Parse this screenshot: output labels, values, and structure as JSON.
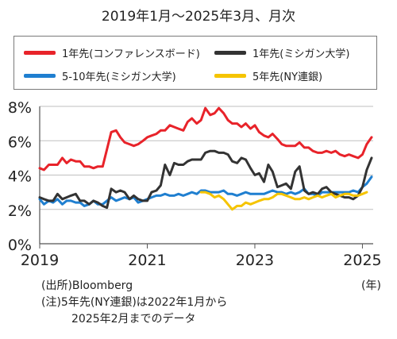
{
  "title": "2019年1月～2025年3月、月次",
  "legend": [
    {
      "label": "1年先(コンファレンスボード)",
      "color": "#e8232a"
    },
    {
      "label": "1年先(ミシガン大学)",
      "color": "#333333"
    },
    {
      "label": "5-10年先(ミシガン大学)",
      "color": "#1f7fd0"
    },
    {
      "label": "5年先(NY連銀)",
      "color": "#f5c400"
    }
  ],
  "notes": {
    "source": "(出所)Bloomberg",
    "note1": "(注)5年先(NY連銀)は2022年1月から",
    "note2": "2025年2月までのデータ"
  },
  "chart_data": {
    "type": "line",
    "x_unit": "年",
    "ylim": [
      0,
      8
    ],
    "y_ticks": [
      "0%",
      "2%",
      "4%",
      "6%",
      "8%"
    ],
    "x_ticks": [
      "2019",
      "2021",
      "2023",
      "2025"
    ],
    "x_tick_values": [
      2019,
      2021,
      2023,
      2025
    ],
    "xlim": [
      2019.0,
      2025.2
    ],
    "grid": true,
    "series": [
      {
        "name": "1年先(コンファレンスボード)",
        "color": "#e8232a",
        "x": [
          2019.0,
          2019.08,
          2019.17,
          2019.25,
          2019.33,
          2019.42,
          2019.5,
          2019.58,
          2019.67,
          2019.75,
          2019.83,
          2019.92,
          2020.0,
          2020.08,
          2020.17,
          2020.25,
          2020.33,
          2020.42,
          2020.5,
          2020.58,
          2020.67,
          2020.75,
          2020.83,
          2020.92,
          2021.0,
          2021.08,
          2021.17,
          2021.25,
          2021.33,
          2021.42,
          2021.5,
          2021.58,
          2021.67,
          2021.75,
          2021.83,
          2021.92,
          2022.0,
          2022.08,
          2022.17,
          2022.25,
          2022.33,
          2022.42,
          2022.5,
          2022.58,
          2022.67,
          2022.75,
          2022.83,
          2022.92,
          2023.0,
          2023.08,
          2023.17,
          2023.25,
          2023.33,
          2023.42,
          2023.5,
          2023.58,
          2023.67,
          2023.75,
          2023.83,
          2023.92,
          2024.0,
          2024.08,
          2024.17,
          2024.25,
          2024.33,
          2024.42,
          2024.5,
          2024.58,
          2024.67,
          2024.75,
          2024.83,
          2024.92,
          2025.0,
          2025.08,
          2025.17
        ],
        "values": [
          4.4,
          4.3,
          4.6,
          4.6,
          4.6,
          5.0,
          4.7,
          4.9,
          4.8,
          4.8,
          4.5,
          4.5,
          4.4,
          4.5,
          4.5,
          5.5,
          6.5,
          6.6,
          6.2,
          5.9,
          5.8,
          5.7,
          5.8,
          6.0,
          6.2,
          6.3,
          6.4,
          6.6,
          6.6,
          6.9,
          6.8,
          6.7,
          6.6,
          7.1,
          7.3,
          7.0,
          7.2,
          7.9,
          7.5,
          7.6,
          7.9,
          7.6,
          7.2,
          7.0,
          7.0,
          6.8,
          7.0,
          6.7,
          6.9,
          6.5,
          6.3,
          6.2,
          6.4,
          6.1,
          5.8,
          5.7,
          5.7,
          5.7,
          5.9,
          5.6,
          5.6,
          5.4,
          5.3,
          5.3,
          5.4,
          5.3,
          5.4,
          5.2,
          5.1,
          5.2,
          5.1,
          5.0,
          5.2,
          5.8,
          6.2
        ]
      },
      {
        "name": "1年先(ミシガン大学)",
        "color": "#333333",
        "x": [
          2019.0,
          2019.08,
          2019.17,
          2019.25,
          2019.33,
          2019.42,
          2019.5,
          2019.58,
          2019.67,
          2019.75,
          2019.83,
          2019.92,
          2020.0,
          2020.08,
          2020.17,
          2020.25,
          2020.33,
          2020.42,
          2020.5,
          2020.58,
          2020.67,
          2020.75,
          2020.83,
          2020.92,
          2021.0,
          2021.08,
          2021.17,
          2021.25,
          2021.33,
          2021.42,
          2021.5,
          2021.58,
          2021.67,
          2021.75,
          2021.83,
          2021.92,
          2022.0,
          2022.08,
          2022.17,
          2022.25,
          2022.33,
          2022.42,
          2022.5,
          2022.58,
          2022.67,
          2022.75,
          2022.83,
          2022.92,
          2023.0,
          2023.08,
          2023.17,
          2023.25,
          2023.33,
          2023.42,
          2023.5,
          2023.58,
          2023.67,
          2023.75,
          2023.83,
          2023.92,
          2024.0,
          2024.08,
          2024.17,
          2024.25,
          2024.33,
          2024.42,
          2024.5,
          2024.58,
          2024.67,
          2024.75,
          2024.83,
          2024.92,
          2025.0,
          2025.08,
          2025.17
        ],
        "values": [
          2.7,
          2.6,
          2.5,
          2.5,
          2.9,
          2.6,
          2.7,
          2.8,
          2.9,
          2.5,
          2.5,
          2.3,
          2.5,
          2.4,
          2.2,
          2.1,
          3.2,
          3.0,
          3.1,
          3.0,
          2.6,
          2.8,
          2.6,
          2.5,
          2.5,
          3.0,
          3.1,
          3.4,
          4.6,
          4.0,
          4.7,
          4.6,
          4.6,
          4.8,
          4.9,
          4.9,
          4.9,
          5.3,
          5.4,
          5.4,
          5.3,
          5.3,
          5.2,
          4.8,
          4.7,
          5.0,
          4.9,
          4.4,
          4.0,
          4.1,
          3.6,
          4.6,
          4.2,
          3.3,
          3.4,
          3.5,
          3.2,
          4.2,
          4.5,
          3.1,
          2.9,
          3.0,
          2.9,
          3.2,
          3.3,
          3.0,
          2.9,
          2.8,
          2.7,
          2.7,
          2.6,
          2.8,
          3.3,
          4.3,
          5.0
        ]
      },
      {
        "name": "5-10年先(ミシガン大学)",
        "color": "#1f7fd0",
        "x": [
          2019.0,
          2019.08,
          2019.17,
          2019.25,
          2019.33,
          2019.42,
          2019.5,
          2019.58,
          2019.67,
          2019.75,
          2019.83,
          2019.92,
          2020.0,
          2020.08,
          2020.17,
          2020.25,
          2020.33,
          2020.42,
          2020.5,
          2020.58,
          2020.67,
          2020.75,
          2020.83,
          2020.92,
          2021.0,
          2021.08,
          2021.17,
          2021.25,
          2021.33,
          2021.42,
          2021.5,
          2021.58,
          2021.67,
          2021.75,
          2021.83,
          2021.92,
          2022.0,
          2022.08,
          2022.17,
          2022.25,
          2022.33,
          2022.42,
          2022.5,
          2022.58,
          2022.67,
          2022.75,
          2022.83,
          2022.92,
          2023.0,
          2023.08,
          2023.17,
          2023.25,
          2023.33,
          2023.42,
          2023.5,
          2023.58,
          2023.67,
          2023.75,
          2023.83,
          2023.92,
          2024.0,
          2024.08,
          2024.17,
          2024.25,
          2024.33,
          2024.42,
          2024.5,
          2024.58,
          2024.67,
          2024.75,
          2024.83,
          2024.92,
          2025.0,
          2025.08,
          2025.17
        ],
        "values": [
          2.6,
          2.3,
          2.5,
          2.4,
          2.6,
          2.3,
          2.5,
          2.5,
          2.4,
          2.4,
          2.2,
          2.3,
          2.5,
          2.3,
          2.3,
          2.5,
          2.7,
          2.5,
          2.6,
          2.7,
          2.6,
          2.7,
          2.4,
          2.5,
          2.6,
          2.7,
          2.8,
          2.8,
          2.9,
          2.8,
          2.8,
          2.9,
          2.8,
          2.9,
          3.0,
          2.9,
          3.1,
          3.1,
          3.0,
          3.0,
          3.0,
          3.1,
          2.9,
          2.9,
          2.8,
          2.9,
          3.0,
          2.9,
          2.9,
          2.9,
          2.9,
          3.0,
          3.1,
          3.0,
          3.0,
          2.9,
          3.0,
          2.9,
          3.0,
          3.2,
          2.9,
          2.9,
          2.8,
          3.0,
          3.0,
          3.0,
          3.0,
          3.0,
          3.0,
          3.0,
          3.1,
          3.0,
          3.3,
          3.5,
          3.9
        ]
      },
      {
        "name": "5年先(NY連銀)",
        "color": "#f5c400",
        "x": [
          2022.0,
          2022.08,
          2022.17,
          2022.25,
          2022.33,
          2022.42,
          2022.5,
          2022.58,
          2022.67,
          2022.75,
          2022.83,
          2022.92,
          2023.0,
          2023.08,
          2023.17,
          2023.25,
          2023.33,
          2023.42,
          2023.5,
          2023.58,
          2023.67,
          2023.75,
          2023.83,
          2023.92,
          2024.0,
          2024.08,
          2024.17,
          2024.25,
          2024.33,
          2024.42,
          2024.5,
          2024.58,
          2024.67,
          2024.75,
          2024.83,
          2024.92,
          2025.0,
          2025.08
        ],
        "values": [
          3.0,
          3.0,
          2.9,
          2.7,
          2.8,
          2.6,
          2.3,
          2.0,
          2.2,
          2.2,
          2.4,
          2.3,
          2.4,
          2.5,
          2.6,
          2.6,
          2.7,
          2.9,
          2.9,
          2.8,
          2.7,
          2.6,
          2.6,
          2.7,
          2.6,
          2.7,
          2.8,
          2.7,
          2.8,
          2.9,
          2.7,
          2.8,
          2.9,
          2.9,
          2.8,
          2.8,
          2.9,
          3.0
        ]
      }
    ]
  }
}
